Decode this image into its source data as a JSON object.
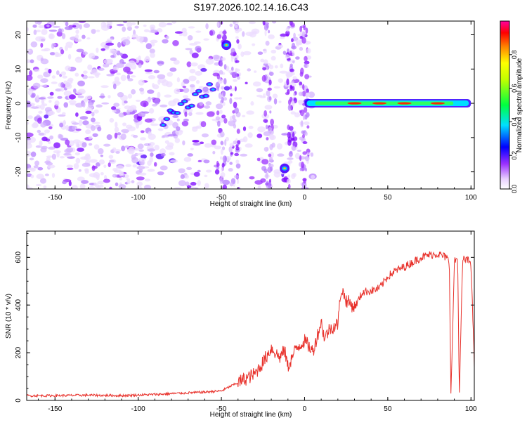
{
  "chart_data": [
    {
      "type": "heatmap",
      "title": "S197.2026.102.14.16.C43",
      "xlabel": "Height of straight line (km)",
      "ylabel": "Frequency (Hz)",
      "xlim": [
        -167,
        102
      ],
      "ylim": [
        -25,
        24
      ],
      "x_ticks": [
        -150,
        -100,
        -50,
        0,
        50,
        100
      ],
      "y_ticks": [
        -20,
        -10,
        0,
        10,
        20
      ],
      "colorbar": {
        "label": "Normalized spectral amplitude",
        "range": [
          0,
          1
        ],
        "ticks": [
          0.0,
          0.2,
          0.4,
          0.6,
          0.8
        ]
      },
      "features": [
        {
          "name": "diagonal-streak",
          "x": [
            -85,
            -55
          ],
          "y": [
            -5,
            5
          ]
        },
        {
          "name": "upper-blob",
          "x": -47,
          "y": 17
        },
        {
          "name": "lower-blob",
          "x": -12,
          "y": -19
        },
        {
          "name": "carrier-line",
          "x": [
            0,
            100
          ],
          "y": 0
        }
      ]
    },
    {
      "type": "line",
      "xlabel": "Height of straight line (km)",
      "ylabel": "SNR (10 * v/v)",
      "xlim": [
        -167,
        102
      ],
      "ylim": [
        0,
        710
      ],
      "x_ticks": [
        -150,
        -100,
        -50,
        0,
        50,
        100
      ],
      "y_ticks": [
        0,
        200,
        400,
        600
      ],
      "series": [
        {
          "name": "SNR",
          "color": "#e8322c",
          "x": [
            -167,
            -150,
            -130,
            -110,
            -90,
            -75,
            -60,
            -50,
            -40,
            -30,
            -25,
            -20,
            -15,
            -12,
            -10,
            -5,
            0,
            5,
            10,
            12,
            15,
            20,
            22,
            25,
            30,
            35,
            40,
            45,
            50,
            55,
            60,
            65,
            70,
            75,
            80,
            85,
            87,
            88,
            90,
            92,
            93,
            95,
            97,
            100,
            102
          ],
          "values": [
            20,
            20,
            22,
            20,
            25,
            30,
            35,
            40,
            75,
            110,
            160,
            220,
            180,
            210,
            140,
            220,
            250,
            205,
            330,
            260,
            300,
            320,
            470,
            420,
            390,
            455,
            460,
            470,
            520,
            545,
            560,
            580,
            600,
            610,
            615,
            600,
            580,
            20,
            580,
            600,
            20,
            590,
            590,
            580,
            150
          ]
        }
      ]
    }
  ]
}
